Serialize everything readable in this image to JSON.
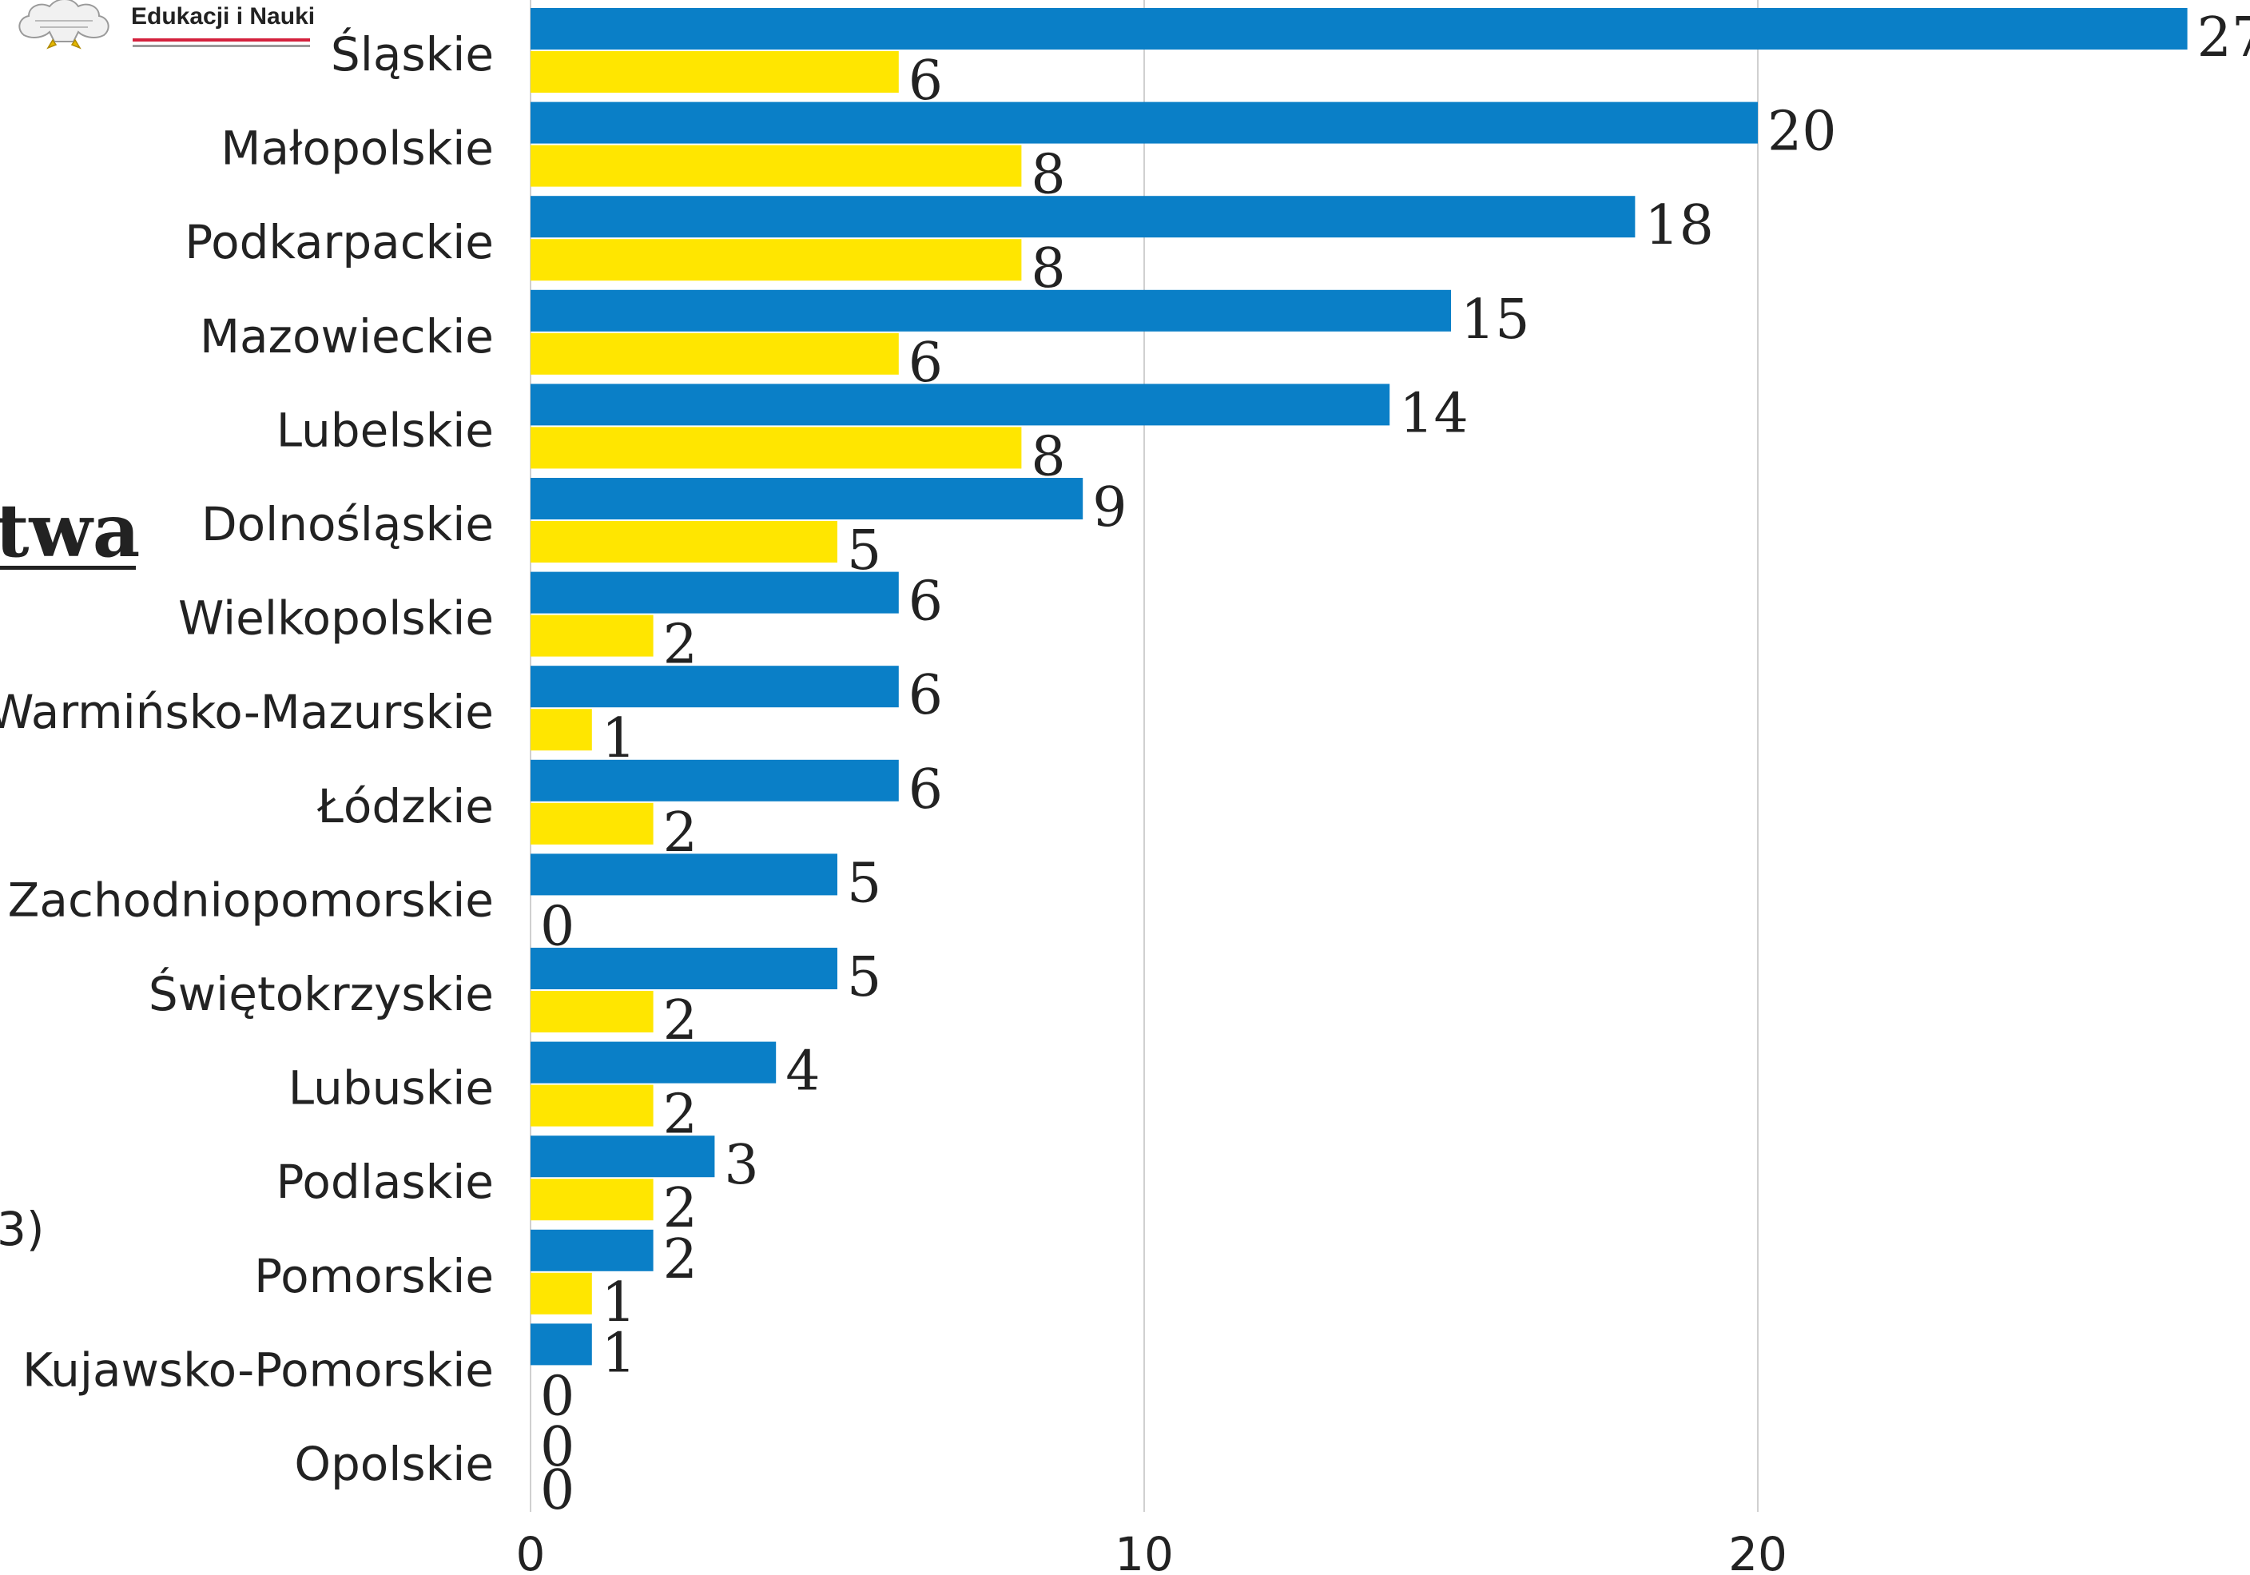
{
  "header": {
    "logo_text": "Edukacji i Nauki"
  },
  "fragments": {
    "title_fragment": "twa",
    "side_fragment": "3)"
  },
  "colors": {
    "series_blue": "#0a7fc7",
    "series_yellow": "#ffe600",
    "grid": "#d0d0d0",
    "logo_red": "#d4213d"
  },
  "chart_data": {
    "type": "bar",
    "orientation": "horizontal",
    "categories": [
      "Śląskie",
      "Małopolskie",
      "Podkarpackie",
      "Mazowieckie",
      "Lubelskie",
      "Dolnośląskie",
      "Wielkopolskie",
      "Warmińsko-Mazurskie",
      "Łódzkie",
      "Zachodniopomorskie",
      "Świętokrzyskie",
      "Lubuskie",
      "Podlaskie",
      "Pomorskie",
      "Kujawsko-Pomorskie",
      "Opolskie"
    ],
    "series": [
      {
        "color": "#0a7fc7",
        "values": [
          27,
          20,
          18,
          15,
          14,
          9,
          6,
          6,
          6,
          5,
          5,
          4,
          3,
          2,
          1,
          0
        ]
      },
      {
        "color": "#ffe600",
        "values": [
          6,
          8,
          8,
          6,
          8,
          5,
          2,
          1,
          2,
          0,
          2,
          2,
          2,
          1,
          0,
          0
        ]
      }
    ],
    "xticks": [
      0,
      10,
      20
    ],
    "xlim": [
      0,
      28
    ],
    "grid": true
  }
}
